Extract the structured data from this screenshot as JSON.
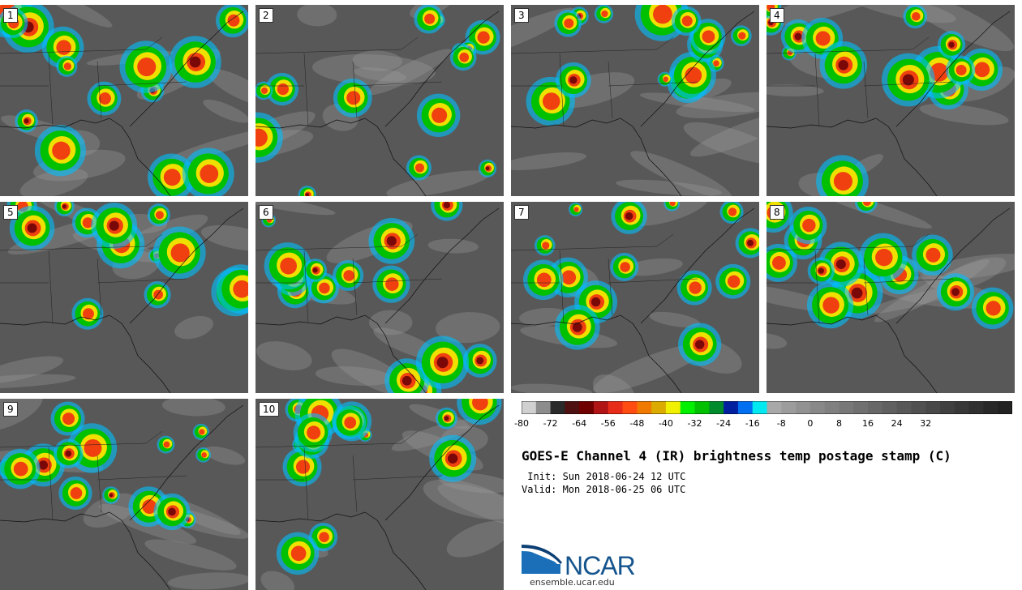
{
  "stamps": [
    {
      "label": "1"
    },
    {
      "label": "2"
    },
    {
      "label": "3"
    },
    {
      "label": "4"
    },
    {
      "label": "5"
    },
    {
      "label": "6"
    },
    {
      "label": "7"
    },
    {
      "label": "8"
    },
    {
      "label": "9"
    },
    {
      "label": "10"
    }
  ],
  "title": "GOES-E Channel 4 (IR) brightness temp postage stamp (C)",
  "init": " Init: Sun 2018-06-24 12 UTC",
  "valid": "Valid: Mon 2018-06-25 06 UTC",
  "colorbar": {
    "min": -80,
    "max": 40,
    "tick_labels": [
      "-80",
      "-72",
      "-64",
      "-56",
      "-48",
      "-40",
      "-32",
      "-24",
      "-16",
      "-8",
      "0",
      "8",
      "16",
      "24",
      "32"
    ],
    "colors": [
      "#d0d0d0",
      "#8c8c8c",
      "#2a2a2a",
      "#4e1010",
      "#700000",
      "#b01414",
      "#e82c1a",
      "#ff4c10",
      "#f07a00",
      "#dcab00",
      "#f0f000",
      "#00f000",
      "#00c000",
      "#008c2c",
      "#0020a0",
      "#0070f0",
      "#00e8f0",
      "#a8a8a8",
      "#9c9c9c",
      "#929292",
      "#888888",
      "#808080",
      "#787878",
      "#707070",
      "#686868",
      "#606060",
      "#585858",
      "#505050",
      "#484848",
      "#404040",
      "#383838",
      "#303030",
      "#282828",
      "#222222"
    ]
  },
  "logo": {
    "text": "NCAR",
    "url": "ensemble.ucar.edu"
  }
}
